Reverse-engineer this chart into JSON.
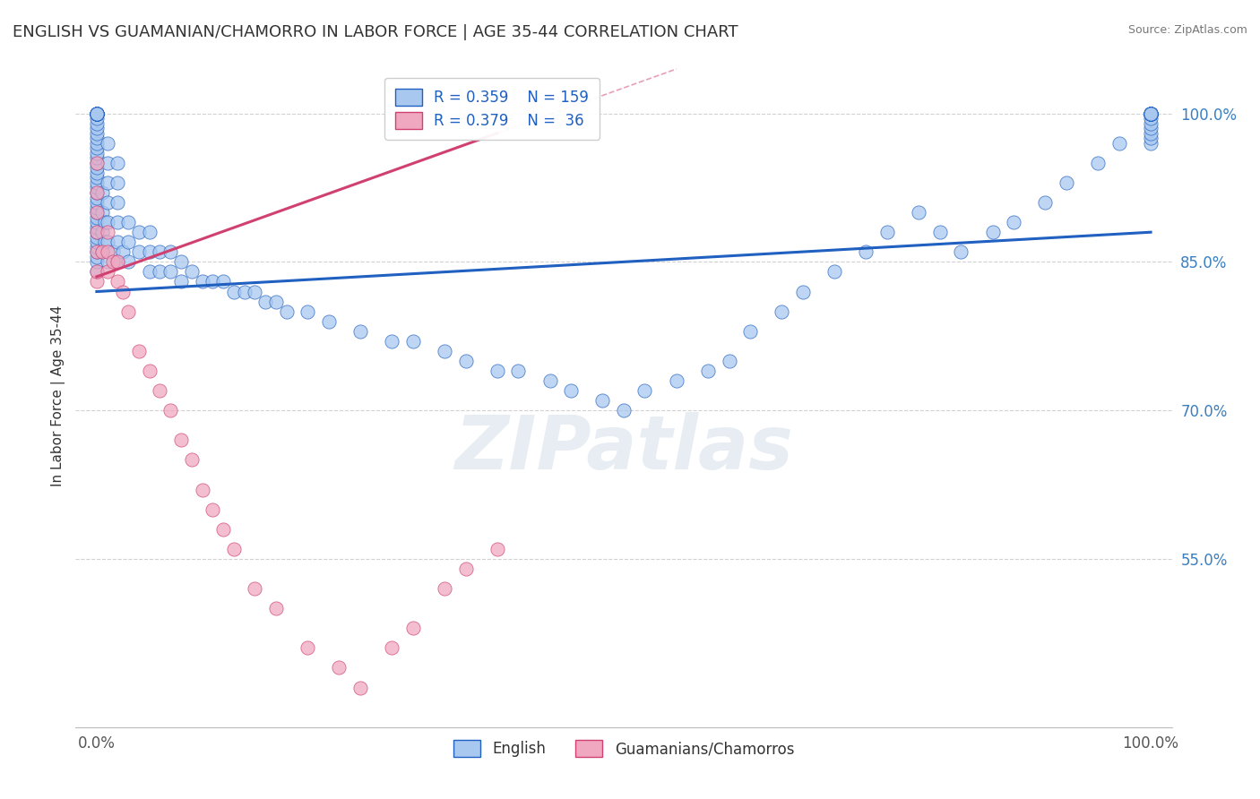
{
  "title": "ENGLISH VS GUAMANIAN/CHAMORRO IN LABOR FORCE | AGE 35-44 CORRELATION CHART",
  "source": "Source: ZipAtlas.com",
  "ylabel": "In Labor Force | Age 35-44",
  "color_english": "#a8c8f0",
  "color_guam": "#f0a8c0",
  "color_trend_english": "#2060c0",
  "color_trend_guam": "#d04070",
  "watermark_color": "#d0dce8",
  "ytick_color": "#3a7fc1",
  "title_color": "#333333",
  "source_color": "#777777",
  "legend_edgecolor": "#cccccc",
  "grid_color": "#cccccc",
  "english_x": [
    0.0,
    0.0,
    0.0,
    0.0,
    0.0,
    0.0,
    0.0,
    0.0,
    0.0,
    0.0,
    0.0,
    0.0,
    0.0,
    0.0,
    0.0,
    0.0,
    0.0,
    0.0,
    0.0,
    0.0,
    0.0,
    0.0,
    0.0,
    0.0,
    0.0,
    0.0,
    0.0,
    0.0,
    0.0,
    0.0,
    0.0,
    0.0,
    0.0,
    0.0,
    0.0,
    0.0,
    0.0,
    0.0,
    0.0,
    0.0,
    0.0,
    0.0,
    0.0,
    0.0,
    0.0,
    0.0,
    0.0,
    0.0,
    0.0,
    0.0,
    0.005,
    0.005,
    0.005,
    0.005,
    0.008,
    0.008,
    0.01,
    0.01,
    0.01,
    0.01,
    0.01,
    0.01,
    0.01,
    0.015,
    0.02,
    0.02,
    0.02,
    0.02,
    0.02,
    0.02,
    0.025,
    0.03,
    0.03,
    0.03,
    0.04,
    0.04,
    0.05,
    0.05,
    0.05,
    0.06,
    0.06,
    0.07,
    0.07,
    0.08,
    0.08,
    0.09,
    0.1,
    0.11,
    0.12,
    0.13,
    0.14,
    0.15,
    0.16,
    0.17,
    0.18,
    0.2,
    0.22,
    0.25,
    0.28,
    0.3,
    0.33,
    0.35,
    0.38,
    0.4,
    0.43,
    0.45,
    0.48,
    0.5,
    0.52,
    0.55,
    0.58,
    0.6,
    0.62,
    0.65,
    0.67,
    0.7,
    0.73,
    0.75,
    0.78,
    0.8,
    0.82,
    0.85,
    0.87,
    0.9,
    0.92,
    0.95,
    0.97,
    1.0,
    1.0,
    1.0,
    1.0,
    1.0,
    1.0,
    1.0,
    1.0,
    1.0,
    1.0,
    1.0,
    1.0,
    1.0,
    1.0,
    1.0,
    1.0,
    1.0,
    1.0,
    1.0,
    1.0,
    1.0,
    1.0,
    1.0,
    1.0,
    1.0,
    1.0,
    1.0,
    1.0,
    1.0,
    1.0,
    1.0,
    1.0
  ],
  "english_y": [
    0.84,
    0.85,
    0.855,
    0.86,
    0.865,
    0.87,
    0.875,
    0.88,
    0.885,
    0.89,
    0.895,
    0.9,
    0.905,
    0.91,
    0.915,
    0.92,
    0.925,
    0.93,
    0.935,
    0.94,
    0.945,
    0.95,
    0.955,
    0.96,
    0.965,
    0.97,
    0.975,
    0.98,
    0.985,
    0.99,
    0.995,
    1.0,
    1.0,
    1.0,
    1.0,
    1.0,
    1.0,
    1.0,
    1.0,
    1.0,
    1.0,
    1.0,
    1.0,
    1.0,
    1.0,
    1.0,
    1.0,
    1.0,
    1.0,
    1.0,
    0.86,
    0.88,
    0.9,
    0.92,
    0.87,
    0.89,
    0.85,
    0.87,
    0.89,
    0.91,
    0.93,
    0.95,
    0.97,
    0.86,
    0.85,
    0.87,
    0.89,
    0.91,
    0.93,
    0.95,
    0.86,
    0.85,
    0.87,
    0.89,
    0.86,
    0.88,
    0.84,
    0.86,
    0.88,
    0.84,
    0.86,
    0.84,
    0.86,
    0.83,
    0.85,
    0.84,
    0.83,
    0.83,
    0.83,
    0.82,
    0.82,
    0.82,
    0.81,
    0.81,
    0.8,
    0.8,
    0.79,
    0.78,
    0.77,
    0.77,
    0.76,
    0.75,
    0.74,
    0.74,
    0.73,
    0.72,
    0.71,
    0.7,
    0.72,
    0.73,
    0.74,
    0.75,
    0.78,
    0.8,
    0.82,
    0.84,
    0.86,
    0.88,
    0.9,
    0.88,
    0.86,
    0.88,
    0.89,
    0.91,
    0.93,
    0.95,
    0.97,
    0.97,
    0.975,
    0.98,
    0.985,
    0.99,
    0.995,
    1.0,
    1.0,
    1.0,
    1.0,
    1.0,
    1.0,
    1.0,
    1.0,
    1.0,
    1.0,
    1.0,
    1.0,
    1.0,
    1.0,
    1.0,
    1.0,
    1.0,
    1.0,
    1.0,
    1.0,
    1.0,
    1.0,
    1.0,
    1.0,
    1.0,
    1.0
  ],
  "guam_x": [
    0.0,
    0.0,
    0.0,
    0.0,
    0.0,
    0.0,
    0.0,
    0.005,
    0.01,
    0.01,
    0.01,
    0.015,
    0.02,
    0.02,
    0.025,
    0.03,
    0.04,
    0.05,
    0.06,
    0.07,
    0.08,
    0.09,
    0.1,
    0.11,
    0.12,
    0.13,
    0.15,
    0.17,
    0.2,
    0.23,
    0.25,
    0.28,
    0.3,
    0.33,
    0.35,
    0.38
  ],
  "guam_y": [
    0.83,
    0.84,
    0.86,
    0.88,
    0.9,
    0.92,
    0.95,
    0.86,
    0.84,
    0.86,
    0.88,
    0.85,
    0.83,
    0.85,
    0.82,
    0.8,
    0.76,
    0.74,
    0.72,
    0.7,
    0.67,
    0.65,
    0.62,
    0.6,
    0.58,
    0.56,
    0.52,
    0.5,
    0.46,
    0.44,
    0.42,
    0.46,
    0.48,
    0.52,
    0.54,
    0.56
  ],
  "trend_english_x0": 0.0,
  "trend_english_x1": 1.0,
  "trend_english_y0": 0.82,
  "trend_english_y1": 0.88,
  "trend_guam_x0": 0.0,
  "trend_guam_x1": 0.38,
  "trend_guam_y0": 0.835,
  "trend_guam_y1": 0.98,
  "xlim": [
    -0.02,
    1.02
  ],
  "ylim": [
    0.38,
    1.05
  ],
  "ytick_vals": [
    0.55,
    0.7,
    0.85,
    1.0
  ],
  "ytick_labels": [
    "55.0%",
    "70.0%",
    "85.0%",
    "100.0%"
  ]
}
